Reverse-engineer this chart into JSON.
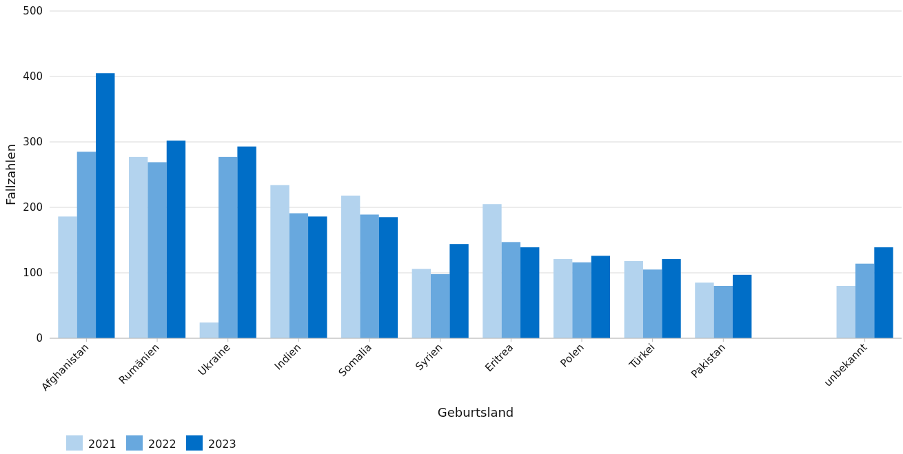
{
  "chart_data": {
    "type": "bar",
    "xlabel": "Geburtsland",
    "ylabel": "Fallzahlen",
    "categories": [
      "Afghanistan",
      "Rumänien",
      "Ukraine",
      "Indien",
      "Somalia",
      "Syrien",
      "Eritrea",
      "Polen",
      "Türkei",
      "Pakistan",
      null,
      "unbekannt"
    ],
    "series": [
      {
        "name": "2021",
        "color": "#b3d3ee",
        "values": [
          186,
          277,
          24,
          234,
          218,
          106,
          205,
          121,
          118,
          85,
          null,
          80
        ]
      },
      {
        "name": "2022",
        "color": "#68a8de",
        "values": [
          285,
          269,
          277,
          191,
          189,
          98,
          147,
          116,
          105,
          80,
          null,
          114
        ]
      },
      {
        "name": "2023",
        "color": "#006ec7",
        "values": [
          405,
          302,
          293,
          186,
          185,
          144,
          139,
          126,
          121,
          97,
          null,
          139
        ]
      }
    ],
    "ylim": [
      0,
      500
    ],
    "yticks": [
      0,
      100,
      200,
      300,
      400,
      500
    ],
    "grid": "y",
    "legend": "bottom left"
  }
}
